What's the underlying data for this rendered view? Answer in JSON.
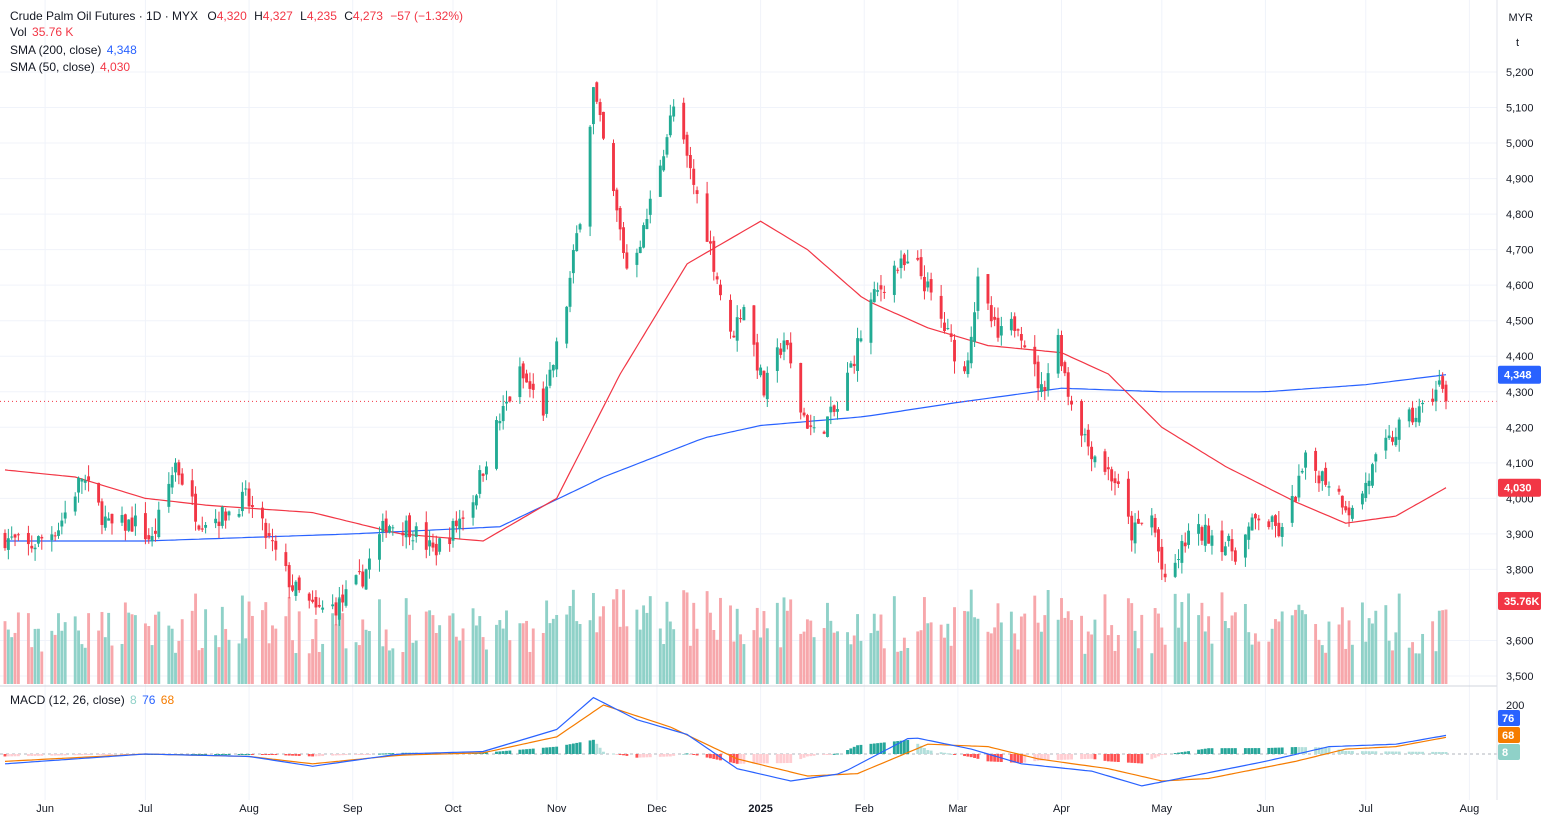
{
  "legend": {
    "symbol": "Crude Palm Oil Futures · 1D · MYX",
    "o_label": "O",
    "o_val": "4,320",
    "h_label": "H",
    "h_val": "4,327",
    "l_label": "L",
    "l_val": "4,235",
    "c_label": "C",
    "c_val": "4,273",
    "change": "−57 (−1.32%)",
    "vol_label": "Vol",
    "vol_val": "35.76 K",
    "sma200_label": "SMA (200, close)",
    "sma200_val": "4,348",
    "sma50_label": "SMA (50, close)",
    "sma50_val": "4,030",
    "macd_label": "MACD (12, 26, close)",
    "macd_hist": "8",
    "macd_line": "76",
    "macd_signal": "68"
  },
  "currency": "MYR",
  "unit_button": "t",
  "badges": {
    "sma200": "4,348",
    "sma50": "4,030",
    "volume": "35.76K",
    "macd_line": "76",
    "macd_signal": "68",
    "macd_hist": "8"
  },
  "colors": {
    "up": "#22ab94",
    "down": "#f23645",
    "up_vol": "#8fd1c8",
    "down_vol": "#f7a7ab",
    "sma200": "#2962ff",
    "sma50": "#f23645",
    "macd": "#2962ff",
    "signal": "#f57c00"
  },
  "chart_data": {
    "type": "candlestick",
    "price_ticks": [
      "5,200",
      "5,100",
      "5,000",
      "4,900",
      "4,800",
      "4,700",
      "4,600",
      "4,500",
      "4,400",
      "4,300",
      "4,200",
      "4,100",
      "4,000",
      "3,900",
      "3,800",
      "3,600",
      "3,500"
    ],
    "price_range": [
      3500,
      5200
    ],
    "last_close": 4273,
    "x_labels": [
      "Jun",
      "Jul",
      "Aug",
      "Sep",
      "Oct",
      "Nov",
      "Dec",
      "2025",
      "Feb",
      "Mar",
      "Apr",
      "May",
      "Jun",
      "Jul",
      "Aug"
    ],
    "macd_ticks": [
      "200",
      "0"
    ],
    "price_anchors": [
      [
        "2024-05-20",
        3890
      ],
      [
        "2024-05-27",
        3860
      ],
      [
        "2024-06-05",
        3920
      ],
      [
        "2024-06-12",
        4060
      ],
      [
        "2024-06-20",
        3920
      ],
      [
        "2024-06-28",
        3930
      ],
      [
        "2024-07-03",
        3880
      ],
      [
        "2024-07-10",
        4100
      ],
      [
        "2024-07-17",
        3940
      ],
      [
        "2024-07-24",
        3950
      ],
      [
        "2024-07-31",
        4000
      ],
      [
        "2024-08-07",
        3880
      ],
      [
        "2024-08-14",
        3750
      ],
      [
        "2024-08-21",
        3680
      ],
      [
        "2024-08-28",
        3700
      ],
      [
        "2024-09-04",
        3780
      ],
      [
        "2024-09-11",
        3930
      ],
      [
        "2024-09-18",
        3920
      ],
      [
        "2024-09-25",
        3850
      ],
      [
        "2024-09-30",
        3900
      ],
      [
        "2024-10-07",
        4000
      ],
      [
        "2024-10-14",
        4200
      ],
      [
        "2024-10-21",
        4350
      ],
      [
        "2024-10-28",
        4250
      ],
      [
        "2024-11-04",
        4550
      ],
      [
        "2024-11-08",
        4800
      ],
      [
        "2024-11-12",
        5150
      ],
      [
        "2024-11-18",
        4850
      ],
      [
        "2024-11-22",
        4650
      ],
      [
        "2024-11-27",
        4750
      ],
      [
        "2024-12-02",
        4950
      ],
      [
        "2024-12-06",
        5100
      ],
      [
        "2024-12-10",
        4950
      ],
      [
        "2024-12-16",
        4750
      ],
      [
        "2024-12-23",
        4450
      ],
      [
        "2024-12-27",
        4550
      ],
      [
        "2025-01-02",
        4300
      ],
      [
        "2025-01-08",
        4450
      ],
      [
        "2025-01-13",
        4250
      ],
      [
        "2025-01-17",
        4180
      ],
      [
        "2025-01-24",
        4250
      ],
      [
        "2025-02-03",
        4550
      ],
      [
        "2025-02-10",
        4650
      ],
      [
        "2025-02-17",
        4650
      ],
      [
        "2025-02-24",
        4500
      ],
      [
        "2025-03-03",
        4350
      ],
      [
        "2025-03-07",
        4600
      ],
      [
        "2025-03-13",
        4450
      ],
      [
        "2025-03-19",
        4500
      ],
      [
        "2025-03-26",
        4300
      ],
      [
        "2025-03-31",
        4450
      ],
      [
        "2025-04-03",
        4300
      ],
      [
        "2025-04-09",
        4150
      ],
      [
        "2025-04-17",
        4050
      ],
      [
        "2025-04-22",
        3900
      ],
      [
        "2025-04-28",
        3950
      ],
      [
        "2025-05-02",
        3750
      ],
      [
        "2025-05-09",
        3900
      ],
      [
        "2025-05-16",
        3900
      ],
      [
        "2025-05-23",
        3850
      ],
      [
        "2025-05-30",
        3950
      ],
      [
        "2025-06-06",
        3900
      ],
      [
        "2025-06-13",
        4100
      ],
      [
        "2025-06-20",
        4050
      ],
      [
        "2025-06-27",
        3960
      ],
      [
        "2025-07-04",
        4100
      ],
      [
        "2025-07-11",
        4200
      ],
      [
        "2025-07-18",
        4250
      ],
      [
        "2025-07-23",
        4320
      ],
      [
        "2025-07-25",
        4273
      ]
    ],
    "sma200": [
      [
        "2024-05-20",
        3880
      ],
      [
        "2024-07-01",
        3880
      ],
      [
        "2024-09-01",
        3900
      ],
      [
        "2024-10-15",
        3920
      ],
      [
        "2024-11-15",
        4060
      ],
      [
        "2024-12-15",
        4170
      ],
      [
        "2025-01-01",
        4205
      ],
      [
        "2025-02-01",
        4230
      ],
      [
        "2025-03-01",
        4270
      ],
      [
        "2025-04-01",
        4310
      ],
      [
        "2025-05-01",
        4300
      ],
      [
        "2025-06-01",
        4300
      ],
      [
        "2025-07-01",
        4320
      ],
      [
        "2025-07-25",
        4348
      ]
    ],
    "sma50": [
      [
        "2024-05-20",
        4080
      ],
      [
        "2024-06-10",
        4060
      ],
      [
        "2024-07-01",
        4000
      ],
      [
        "2024-07-20",
        3980
      ],
      [
        "2024-08-20",
        3960
      ],
      [
        "2024-09-15",
        3900
      ],
      [
        "2024-10-10",
        3880
      ],
      [
        "2024-11-01",
        4000
      ],
      [
        "2024-11-20",
        4350
      ],
      [
        "2024-12-10",
        4660
      ],
      [
        "2025-01-01",
        4780
      ],
      [
        "2025-01-15",
        4700
      ],
      [
        "2025-02-01",
        4560
      ],
      [
        "2025-02-20",
        4480
      ],
      [
        "2025-03-10",
        4430
      ],
      [
        "2025-04-01",
        4410
      ],
      [
        "2025-04-15",
        4350
      ],
      [
        "2025-05-01",
        4200
      ],
      [
        "2025-05-20",
        4090
      ],
      [
        "2025-06-10",
        3990
      ],
      [
        "2025-06-25",
        3930
      ],
      [
        "2025-07-10",
        3950
      ],
      [
        "2025-07-25",
        4030
      ]
    ],
    "macd_line": [
      [
        "2024-05-20",
        -40
      ],
      [
        "2024-06-10",
        -20
      ],
      [
        "2024-07-01",
        0
      ],
      [
        "2024-08-01",
        -10
      ],
      [
        "2024-08-20",
        -50
      ],
      [
        "2024-09-15",
        0
      ],
      [
        "2024-10-10",
        10
      ],
      [
        "2024-11-01",
        100
      ],
      [
        "2024-11-12",
        230
      ],
      [
        "2024-11-25",
        140
      ],
      [
        "2024-12-10",
        80
      ],
      [
        "2024-12-25",
        -60
      ],
      [
        "2025-01-10",
        -110
      ],
      [
        "2025-01-25",
        -80
      ],
      [
        "2025-02-15",
        70
      ],
      [
        "2025-03-05",
        20
      ],
      [
        "2025-03-20",
        -40
      ],
      [
        "2025-04-10",
        -70
      ],
      [
        "2025-04-25",
        -130
      ],
      [
        "2025-05-10",
        -90
      ],
      [
        "2025-06-01",
        -30
      ],
      [
        "2025-06-20",
        30
      ],
      [
        "2025-07-10",
        40
      ],
      [
        "2025-07-25",
        76
      ]
    ],
    "macd_signal": [
      [
        "2024-05-20",
        -30
      ],
      [
        "2024-06-10",
        -15
      ],
      [
        "2024-07-01",
        0
      ],
      [
        "2024-08-01",
        -10
      ],
      [
        "2024-08-20",
        -40
      ],
      [
        "2024-09-15",
        -5
      ],
      [
        "2024-10-10",
        5
      ],
      [
        "2024-11-01",
        70
      ],
      [
        "2024-11-15",
        200
      ],
      [
        "2024-12-05",
        110
      ],
      [
        "2024-12-25",
        -20
      ],
      [
        "2025-01-15",
        -90
      ],
      [
        "2025-01-30",
        -80
      ],
      [
        "2025-02-20",
        40
      ],
      [
        "2025-03-10",
        30
      ],
      [
        "2025-03-25",
        -20
      ],
      [
        "2025-04-15",
        -60
      ],
      [
        "2025-05-01",
        -110
      ],
      [
        "2025-05-15",
        -100
      ],
      [
        "2025-06-10",
        -30
      ],
      [
        "2025-06-25",
        20
      ],
      [
        "2025-07-10",
        30
      ],
      [
        "2025-07-25",
        68
      ]
    ]
  }
}
